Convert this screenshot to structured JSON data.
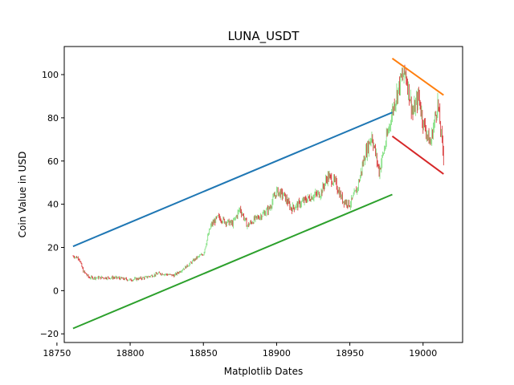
{
  "chart_data": {
    "type": "line",
    "title": "LUNA_USDT",
    "xlabel": "Matplotlib Dates",
    "ylabel": "Coin Value in USD",
    "xlim": [
      18755,
      19027
    ],
    "ylim": [
      -24,
      113
    ],
    "grid": false,
    "x_ticks": [
      18750,
      18800,
      18850,
      18900,
      18950,
      19000
    ],
    "x_tick_labels": [
      "18750",
      "18800",
      "18850",
      "18900",
      "18950",
      "19000"
    ],
    "y_ticks": [
      -20,
      0,
      20,
      40,
      60,
      80,
      100
    ],
    "y_tick_labels": [
      "−20",
      "0",
      "20",
      "40",
      "60",
      "80",
      "100"
    ],
    "candlestick_colors": {
      "up": "#77dd77",
      "down": "#d62728"
    },
    "candlestick_anchors": {
      "x": [
        18761,
        18765,
        18768,
        18772,
        18780,
        18790,
        18800,
        18810,
        18820,
        18830,
        18840,
        18845,
        18850,
        18855,
        18860,
        18865,
        18870,
        18875,
        18880,
        18885,
        18890,
        18895,
        18900,
        18905,
        18910,
        18915,
        18920,
        18925,
        18930,
        18935,
        18940,
        18945,
        18950,
        18955,
        18960,
        18965,
        18970,
        18975,
        18980,
        18985,
        18988,
        18993,
        18997,
        19000,
        19005,
        19010,
        19014
      ],
      "close": [
        16,
        15,
        9,
        6,
        6,
        6,
        5,
        6,
        8,
        7,
        12,
        15,
        17,
        30,
        34,
        32,
        31,
        38,
        30,
        33,
        35,
        38,
        46,
        44,
        38,
        40,
        42,
        44,
        45,
        53,
        50,
        42,
        40,
        47,
        62,
        72,
        55,
        70,
        86,
        98,
        101,
        82,
        90,
        78,
        68,
        87,
        62
      ]
    },
    "series": [
      {
        "color": "#1f77b4",
        "x": [
          18761,
          18979
        ],
        "y": [
          20.5,
          82.5
        ]
      },
      {
        "color": "#2ca02c",
        "x": [
          18761,
          18979
        ],
        "y": [
          -17.5,
          44.5
        ]
      },
      {
        "color": "#ff7f0e",
        "x": [
          18979,
          19014
        ],
        "y": [
          107.5,
          90.5
        ]
      },
      {
        "color": "#d62728",
        "x": [
          18979,
          19014
        ],
        "y": [
          71.5,
          54
        ]
      }
    ]
  }
}
